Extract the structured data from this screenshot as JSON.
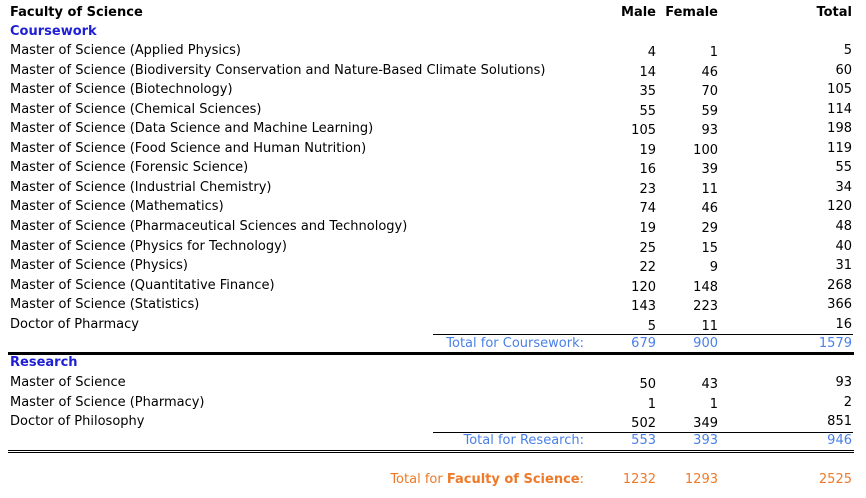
{
  "header": {
    "title": "Faculty of Science",
    "male": "Male",
    "female": "Female",
    "total": "Total"
  },
  "coursework": {
    "heading": "Coursework",
    "rows": [
      {
        "name": "Master of Science (Applied Physics)",
        "male": "4",
        "female": "1",
        "total": "5"
      },
      {
        "name": "Master of Science (Biodiversity Conservation and Nature-Based Climate Solutions)",
        "male": "14",
        "female": "46",
        "total": "60"
      },
      {
        "name": "Master of Science (Biotechnology)",
        "male": "35",
        "female": "70",
        "total": "105"
      },
      {
        "name": "Master of Science (Chemical Sciences)",
        "male": "55",
        "female": "59",
        "total": "114"
      },
      {
        "name": "Master of Science (Data Science and Machine Learning)",
        "male": "105",
        "female": "93",
        "total": "198"
      },
      {
        "name": "Master of Science (Food Science and Human Nutrition)",
        "male": "19",
        "female": "100",
        "total": "119"
      },
      {
        "name": "Master of Science (Forensic Science)",
        "male": "16",
        "female": "39",
        "total": "55"
      },
      {
        "name": "Master of Science (Industrial Chemistry)",
        "male": "23",
        "female": "11",
        "total": "34"
      },
      {
        "name": "Master of Science (Mathematics)",
        "male": "74",
        "female": "46",
        "total": "120"
      },
      {
        "name": "Master of Science (Pharmaceutical Sciences and Technology)",
        "male": "19",
        "female": "29",
        "total": "48"
      },
      {
        "name": "Master of Science (Physics for Technology)",
        "male": "25",
        "female": "15",
        "total": "40"
      },
      {
        "name": "Master of Science (Physics)",
        "male": "22",
        "female": "9",
        "total": "31"
      },
      {
        "name": "Master of Science (Quantitative Finance)",
        "male": "120",
        "female": "148",
        "total": "268"
      },
      {
        "name": "Master of Science (Statistics)",
        "male": "143",
        "female": "223",
        "total": "366"
      },
      {
        "name": "Doctor of Pharmacy",
        "male": "5",
        "female": "11",
        "total": "16"
      }
    ],
    "subtotal": {
      "label": "Total for Coursework:",
      "male": "679",
      "female": "900",
      "total": "1579"
    }
  },
  "research": {
    "heading": "Research",
    "rows": [
      {
        "name": "Master of Science",
        "male": "50",
        "female": "43",
        "total": "93"
      },
      {
        "name": "Master of Science (Pharmacy)",
        "male": "1",
        "female": "1",
        "total": "2"
      },
      {
        "name": "Doctor of Philosophy",
        "male": "502",
        "female": "349",
        "total": "851"
      }
    ],
    "subtotal": {
      "label": "Total for Research:",
      "male": "553",
      "female": "393",
      "total": "946"
    }
  },
  "grand_total": {
    "prefix": "Total for ",
    "faculty": "Faculty of Science",
    "suffix": ":",
    "male": "1232",
    "female": "1293",
    "total": "2525"
  }
}
